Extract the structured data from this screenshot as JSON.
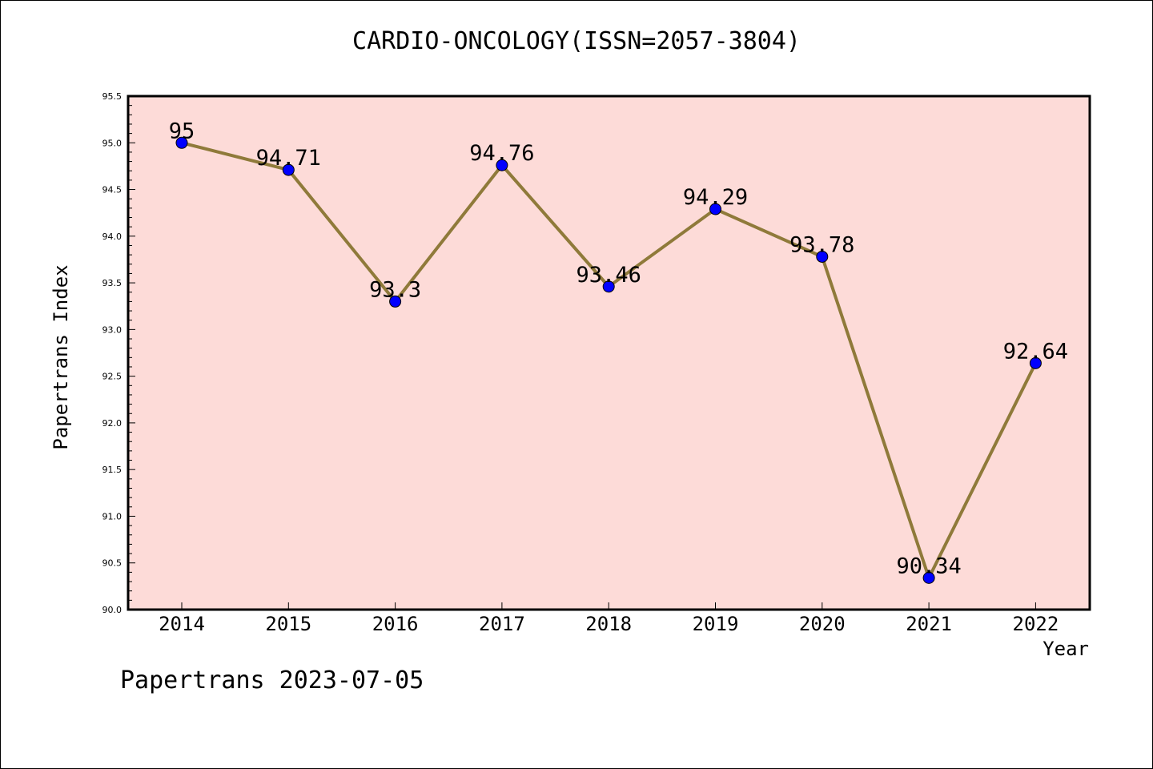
{
  "chart_data": {
    "type": "line",
    "title": "CARDIO-ONCOLOGY(ISSN=2057-3804)",
    "xlabel": "Year",
    "ylabel": "Papertrans Index",
    "x": [
      "2014",
      "2015",
      "2016",
      "2017",
      "2018",
      "2019",
      "2020",
      "2021",
      "2022"
    ],
    "series": [
      {
        "values": [
          95,
          94.71,
          93.3,
          94.76,
          93.46,
          94.29,
          93.78,
          90.34,
          92.64
        ],
        "labels": [
          "95",
          "94.71",
          "93.3",
          "94.76",
          "93.46",
          "94.29",
          "93.78",
          "90.34",
          "92.64"
        ]
      }
    ],
    "ylim": [
      90.0,
      95.5
    ],
    "yticks": [
      "90.0",
      "90.5",
      "91.0",
      "91.5",
      "92.0",
      "92.5",
      "93.0",
      "93.5",
      "94.0",
      "94.5",
      "95.0",
      "95.5"
    ],
    "grid": false,
    "colors": {
      "plot_background": "#fddbd8",
      "line": "#8f7a3a",
      "marker": "#0000ff"
    }
  },
  "footer": "Papertrans 2023-07-05"
}
